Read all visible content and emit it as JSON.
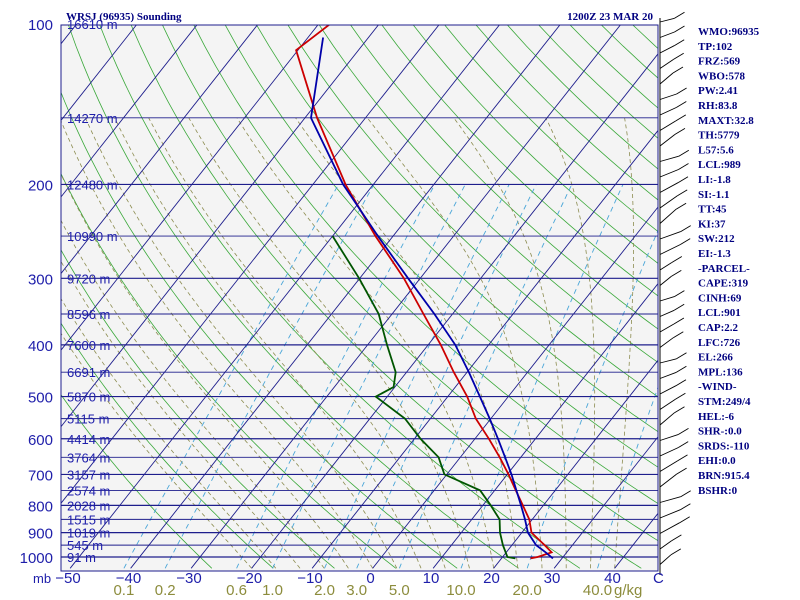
{
  "chart_data": {
    "type": "line",
    "title": "WRSJ (96935) Sounding",
    "time": "1200Z 23 MAR 20",
    "x_axis": {
      "label": "C",
      "ticks": [
        "-50",
        "-40",
        "-30",
        "-20",
        "-10",
        "0",
        "10",
        "20",
        "30",
        "40"
      ],
      "range": [
        -50,
        50
      ]
    },
    "y_axis": {
      "unit_label": "mb",
      "scale": "log",
      "range": [
        1050,
        100
      ],
      "ticks": [
        "100",
        "200",
        "300",
        "400",
        "500",
        "600",
        "700",
        "800",
        "900",
        "1000"
      ]
    },
    "mixing_ratio": {
      "unit": "g/kg",
      "labels": [
        "0.1",
        "0.2",
        "0.6",
        "1.0",
        "2.0",
        "3.0",
        "5.0",
        "10.0",
        "20.0",
        "40.0"
      ]
    },
    "heights": [
      {
        "p": 100,
        "label": "16610 m"
      },
      {
        "p": 150,
        "label": "14270 m"
      },
      {
        "p": 200,
        "label": "12480 m"
      },
      {
        "p": 250,
        "label": "10990 m"
      },
      {
        "p": 300,
        "label": "9720 m"
      },
      {
        "p": 350,
        "label": "8596 m"
      },
      {
        "p": 400,
        "label": "7600 m"
      },
      {
        "p": 450,
        "label": "6691 m"
      },
      {
        "p": 500,
        "label": "5870 m"
      },
      {
        "p": 550,
        "label": "5115 m"
      },
      {
        "p": 600,
        "label": "4414 m"
      },
      {
        "p": 650,
        "label": "3764 m"
      },
      {
        "p": 700,
        "label": "3157 m"
      },
      {
        "p": 750,
        "label": "2574 m"
      },
      {
        "p": 800,
        "label": "2028 m"
      },
      {
        "p": 850,
        "label": "1515 m"
      },
      {
        "p": 900,
        "label": "1019 m"
      },
      {
        "p": 950,
        "label": "545 m"
      },
      {
        "p": 1000,
        "label": "91 m"
      }
    ],
    "series": [
      {
        "name": "Temperature",
        "color": "#cc0000",
        "points": [
          [
            100,
            -78.1
          ],
          [
            112,
            -80.3
          ],
          [
            150,
            -68.0
          ],
          [
            200,
            -54.6
          ],
          [
            250,
            -42.9
          ],
          [
            300,
            -32.7
          ],
          [
            350,
            -24.8
          ],
          [
            400,
            -17.9
          ],
          [
            450,
            -12.2
          ],
          [
            500,
            -6.8
          ],
          [
            550,
            -2.5
          ],
          [
            600,
            2.3
          ],
          [
            650,
            6.5
          ],
          [
            700,
            10.2
          ],
          [
            750,
            13.5
          ],
          [
            800,
            16.6
          ],
          [
            850,
            19.5
          ],
          [
            900,
            21.6
          ],
          [
            950,
            25.4
          ],
          [
            980,
            27.5
          ],
          [
            1000,
            25.8
          ],
          [
            1006,
            24.8
          ]
        ]
      },
      {
        "name": "Dewpoint",
        "color": "#005500",
        "points": [
          [
            250,
            -50.0
          ],
          [
            300,
            -40.1
          ],
          [
            350,
            -32.2
          ],
          [
            400,
            -26.8
          ],
          [
            450,
            -21.8
          ],
          [
            480,
            -20.2
          ],
          [
            500,
            -21.9
          ],
          [
            550,
            -14.2
          ],
          [
            600,
            -9.0
          ],
          [
            650,
            -3.6
          ],
          [
            700,
            -0.4
          ],
          [
            750,
            7.6
          ],
          [
            800,
            11.3
          ],
          [
            850,
            14.6
          ],
          [
            900,
            16.4
          ],
          [
            950,
            18.5
          ],
          [
            1000,
            20.8
          ],
          [
            1006,
            22.3
          ]
        ]
      },
      {
        "name": "Parcel",
        "color": "#0000aa",
        "points": [
          [
            106,
            -77.5
          ],
          [
            150,
            -69.0
          ],
          [
            200,
            -55.0
          ],
          [
            250,
            -42.5
          ],
          [
            300,
            -32.0
          ],
          [
            350,
            -23.0
          ],
          [
            400,
            -15.5
          ],
          [
            450,
            -9.7
          ],
          [
            500,
            -4.7
          ],
          [
            550,
            -0.2
          ],
          [
            600,
            3.8
          ],
          [
            650,
            7.4
          ],
          [
            700,
            10.7
          ],
          [
            750,
            13.6
          ],
          [
            800,
            16.3
          ],
          [
            850,
            18.8
          ],
          [
            900,
            21.0
          ],
          [
            950,
            24.0
          ],
          [
            980,
            26.5
          ],
          [
            1006,
            28.5
          ]
        ]
      }
    ],
    "indices": [
      "WMO:96935",
      "TP:102",
      "FRZ:569",
      "WBO:578",
      "PW:2.41",
      "RH:83.8",
      "MAXT:32.8",
      "TH:5779",
      "L57:5.6",
      "LCL:989",
      "LI:-1.8",
      "SI:-1.1",
      "TT:45",
      "KI:37",
      "SW:212",
      "EI:-1.3",
      "-PARCEL-",
      "CAPE:319",
      "CINH:69",
      "LCL:901",
      "CAP:2.2",
      "LFC:726",
      "EL:266",
      "MPL:136",
      "-WIND-",
      "STM:249/4",
      "HEL:-6",
      "SHR-:0.0",
      "SRDS:-110",
      "EHI:0.0",
      "BRN:915.4",
      "BSHR:0"
    ],
    "grid": true
  }
}
